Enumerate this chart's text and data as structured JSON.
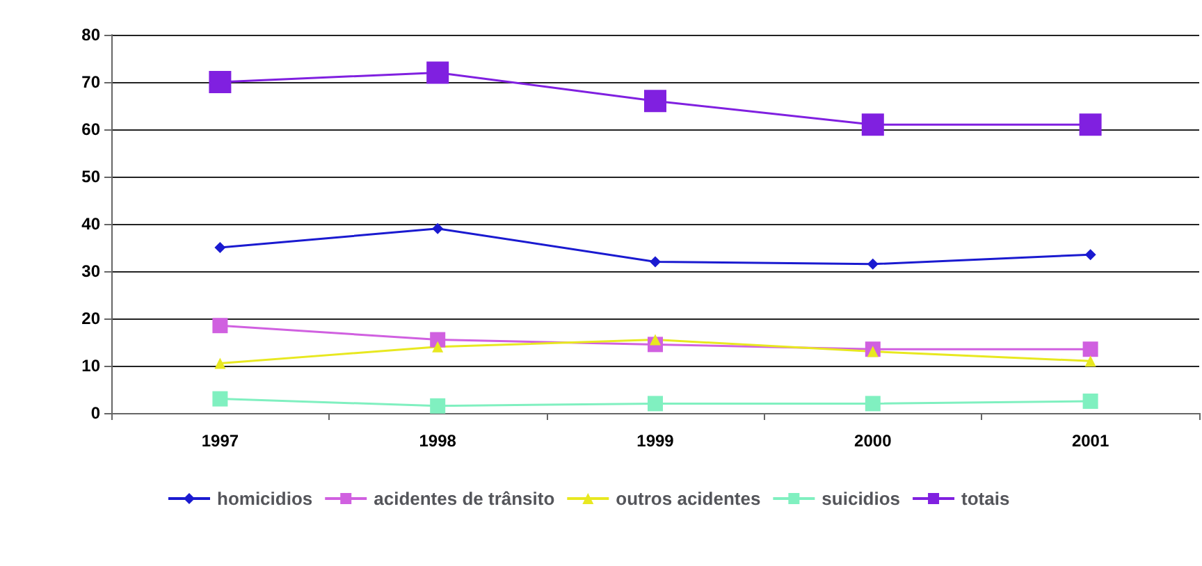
{
  "chart_data": {
    "type": "line",
    "categories": [
      "1997",
      "1998",
      "1999",
      "2000",
      "2001"
    ],
    "ylim": [
      0,
      80
    ],
    "yticks": [
      0,
      10,
      20,
      30,
      40,
      50,
      60,
      70,
      80
    ],
    "grid": "y",
    "legend": "bottom",
    "series": [
      {
        "name": "homicidios",
        "color": "#1a1ad0",
        "marker": "diamond",
        "values": [
          35,
          39,
          32,
          31.5,
          33.5
        ]
      },
      {
        "name": "acidentes de trânsito",
        "color": "#d060e0",
        "marker": "square",
        "values": [
          18.5,
          15.5,
          14.5,
          13.5,
          13.5
        ]
      },
      {
        "name": "outros acidentes",
        "color": "#e8e820",
        "marker": "triangle",
        "values": [
          10.5,
          14,
          15.5,
          13,
          11
        ]
      },
      {
        "name": "suicidios",
        "color": "#80f0c0",
        "marker": "square",
        "values": [
          3,
          1.5,
          2,
          2,
          2.5
        ]
      },
      {
        "name": "totais",
        "color": "#8020e0",
        "marker": "square",
        "values": [
          70,
          72,
          66,
          61,
          61
        ]
      }
    ]
  }
}
